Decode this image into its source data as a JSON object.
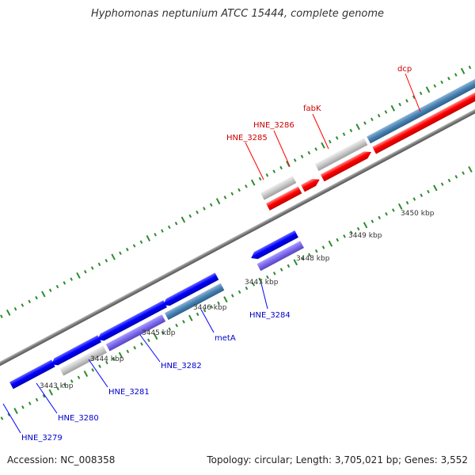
{
  "title": "Hyphomonas neptunium ATCC 15444, complete genome",
  "footer": {
    "accession": "Accession: NC_008358",
    "summary": "Topology: circular; Length: 3,705,021 bp; Genes: 3,552"
  },
  "colors": {
    "backbone": "#888888",
    "tick": "#2e8b2e",
    "forward_gene": "#ff0000",
    "reverse_gene": "#0000ff",
    "grey_feature": "#c8c8c8",
    "steelblue_feature": "#4682b4",
    "purple_feature": "#7b68ee",
    "ruler_label": "#333333"
  },
  "ruler": {
    "unit": "kbp",
    "labels": [
      "3443 kbp",
      "3444 kbp",
      "3445 kbp",
      "3446 kbp",
      "3447 kbp",
      "3448 kbp",
      "3449 kbp",
      "3450 kbp"
    ]
  },
  "upper_genes": [
    {
      "label": "HNE_3285",
      "color": "red"
    },
    {
      "label": "HNE_3286",
      "color": "red"
    },
    {
      "label": "fabK",
      "color": "red"
    },
    {
      "label": "dcp",
      "color": "red"
    }
  ],
  "lower_genes": [
    {
      "label": "HNE_3279",
      "color": "blue"
    },
    {
      "label": "HNE_3280",
      "color": "blue"
    },
    {
      "label": "HNE_3281",
      "color": "blue"
    },
    {
      "label": "HNE_3282",
      "color": "blue"
    },
    {
      "label": "metA",
      "color": "blue"
    },
    {
      "label": "HNE_3284",
      "color": "blue"
    }
  ]
}
